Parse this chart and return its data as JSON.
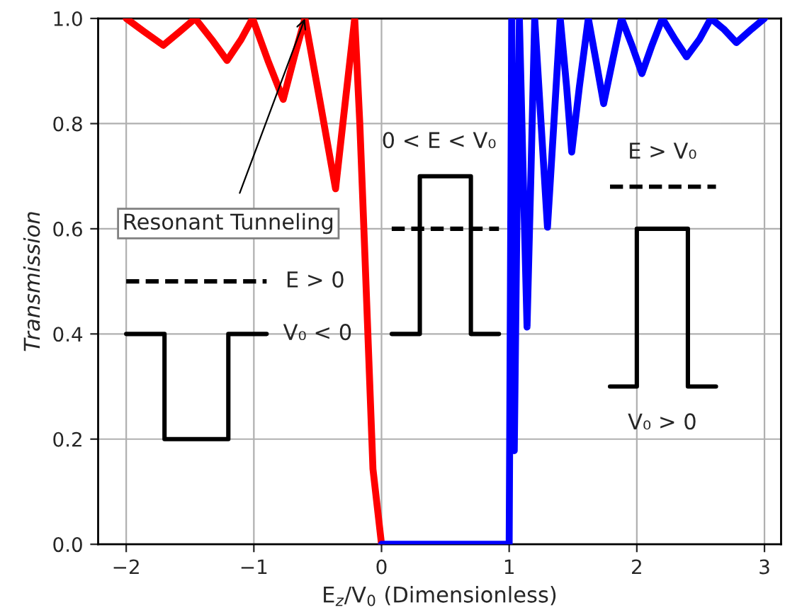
{
  "chart_data": {
    "type": "line",
    "xlabel": "E$_{z}$/V$_{0}$ (Dimensionless)",
    "ylabel": "Transmission",
    "xlim": [
      -2.22,
      3.13
    ],
    "ylim": [
      0,
      1
    ],
    "xticks": [
      {
        "value": -2,
        "label": "−2"
      },
      {
        "value": -1,
        "label": "−1"
      },
      0,
      1,
      2,
      3
    ],
    "yticks": [
      {
        "value": 0,
        "label": "0.0"
      },
      {
        "value": 0.2,
        "label": "0.2"
      },
      {
        "value": 0.4,
        "label": "0.4"
      },
      {
        "value": 0.6,
        "label": "0.6"
      },
      {
        "value": 0.8,
        "label": "0.8"
      },
      {
        "value": 1,
        "label": "1.0"
      }
    ],
    "grid": true,
    "series": [
      {
        "color": "#ff0000",
        "x": [
          -2,
          -1.86,
          -1.71,
          -1.58,
          -1.46,
          -1.33,
          -1.21,
          -1.1,
          -1.01,
          -0.89,
          -0.77,
          -0.68,
          -0.6,
          -0.48,
          -0.36,
          -0.28,
          -0.21,
          -0.17,
          -0.13,
          -0.067,
          0
        ],
        "values": [
          1.0,
          0.975,
          0.949,
          0.975,
          1.0,
          0.96,
          0.92,
          0.96,
          1.0,
          0.92,
          0.846,
          0.93,
          1.0,
          0.84,
          0.676,
          0.85,
          1.0,
          0.8,
          0.549,
          0.143,
          0.0
        ]
      },
      {
        "color": "#0000ff",
        "x": [
          0,
          0.5,
          1.0,
          1.01,
          1.02,
          1.03,
          1.04,
          1.06,
          1.08,
          1.11,
          1.14,
          1.17,
          1.2,
          1.25,
          1.3,
          1.35,
          1.4,
          1.45,
          1.49,
          1.55,
          1.62,
          1.68,
          1.74,
          1.81,
          1.88,
          1.96,
          2.04,
          2.12,
          2.2,
          2.3,
          2.39,
          2.49,
          2.58,
          2.68,
          2.78,
          2.9,
          3.0
        ],
        "values": [
          0.0,
          0.0,
          0.0,
          0.5,
          1.0,
          0.5,
          0.178,
          0.6,
          1.0,
          0.7,
          0.413,
          0.7,
          1.0,
          0.8,
          0.603,
          0.8,
          1.0,
          0.87,
          0.746,
          0.87,
          1.0,
          0.92,
          0.838,
          0.92,
          1.0,
          0.95,
          0.895,
          0.95,
          1.0,
          0.96,
          0.927,
          0.96,
          1.0,
          0.98,
          0.954,
          0.98,
          1.0
        ]
      },
      {
        "color": "#000000",
        "line_style": "solid",
        "x": [
          -2,
          -1.7,
          -1.7,
          -1.2,
          -1.2,
          -0.9
        ],
        "values": [
          0.4,
          0.4,
          0.2,
          0.2,
          0.4,
          0.4
        ]
      },
      {
        "color": "#000000",
        "line_style": "dashed",
        "x": [
          -2,
          -0.9
        ],
        "values": [
          0.5,
          0.5
        ]
      },
      {
        "color": "#000000",
        "line_style": "solid",
        "x": [
          0.08,
          0.3,
          0.3,
          0.7,
          0.7,
          0.92
        ],
        "values": [
          0.4,
          0.4,
          0.7,
          0.7,
          0.4,
          0.4
        ]
      },
      {
        "color": "#000000",
        "line_style": "dashed",
        "x": [
          0.08,
          0.92
        ],
        "values": [
          0.6,
          0.6
        ]
      },
      {
        "color": "#000000",
        "line_style": "solid",
        "x": [
          1.79,
          2.0,
          2.0,
          2.4,
          2.4,
          2.62
        ],
        "values": [
          0.3,
          0.3,
          0.6,
          0.6,
          0.3,
          0.3
        ]
      },
      {
        "color": "#000000",
        "line_style": "dashed",
        "x": [
          1.79,
          2.62
        ],
        "values": [
          0.68,
          0.68
        ]
      }
    ],
    "annotations": [
      {
        "text": "Resonant Tunneling",
        "x": -0.6,
        "y": 1.0
      },
      "E > 0",
      "V₀ < 0",
      "0 < E < V₀",
      "E > V₀",
      "V₀ > 0"
    ]
  }
}
